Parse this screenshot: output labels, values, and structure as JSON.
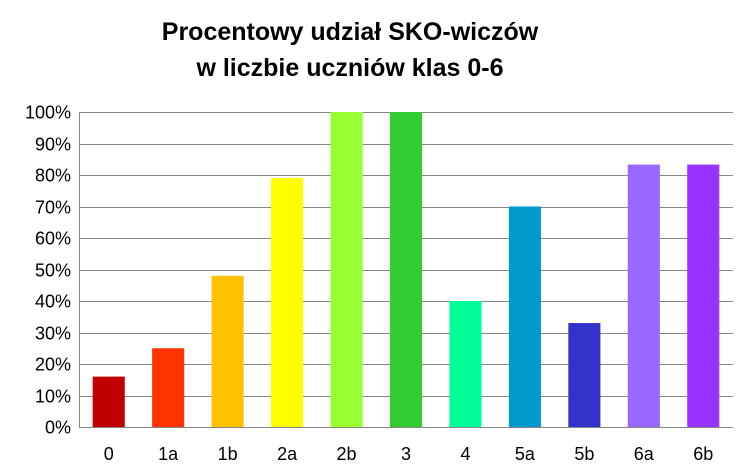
{
  "chart_data": {
    "type": "bar",
    "title_lines": [
      "Procentowy udział SKO-wiczów",
      "w liczbie uczniów klas 0-6"
    ],
    "xlabel": "",
    "ylabel": "",
    "categories": [
      "0",
      "1a",
      "1b",
      "2a",
      "2b",
      "3",
      "4",
      "5a",
      "5b",
      "6a",
      "6b"
    ],
    "values": [
      16,
      25,
      48,
      79,
      100,
      100,
      40,
      70,
      33,
      83.3,
      83.3
    ],
    "colors": [
      "#C00000",
      "#FF3300",
      "#FFC000",
      "#FFFF00",
      "#99FF33",
      "#33CC33",
      "#00FF99",
      "#0099CC",
      "#3333CC",
      "#9966FF",
      "#9933FF"
    ],
    "ylim": [
      0,
      100
    ],
    "yticks": [
      {
        "value": 0,
        "label": "0%"
      },
      {
        "value": 10,
        "label": "10%"
      },
      {
        "value": 20,
        "label": "20%"
      },
      {
        "value": 30,
        "label": "30%"
      },
      {
        "value": 40,
        "label": "40%"
      },
      {
        "value": 50,
        "label": "50%"
      },
      {
        "value": 60,
        "label": "60%"
      },
      {
        "value": 70,
        "label": "70%"
      },
      {
        "value": 80,
        "label": "80%"
      },
      {
        "value": 90,
        "label": "90%"
      },
      {
        "value": 100,
        "label": "100%"
      }
    ],
    "grid": true,
    "legend": "none"
  }
}
